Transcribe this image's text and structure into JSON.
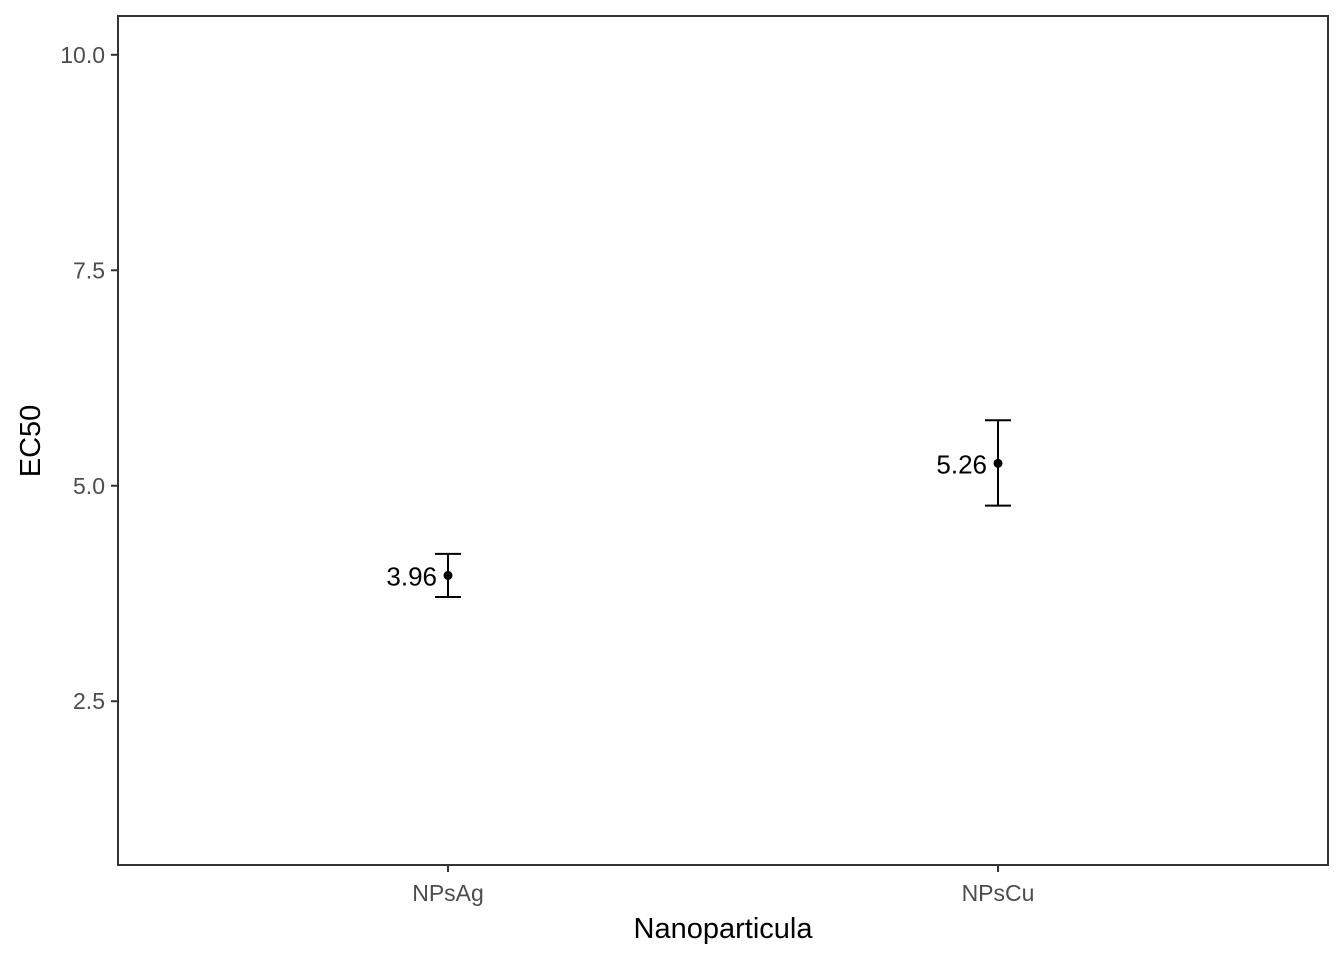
{
  "chart_data": {
    "type": "scatter",
    "title": "",
    "xlabel": "Nanoparticula",
    "ylabel": "EC50",
    "categories": [
      "NPsAg",
      "NPsCu"
    ],
    "ylim": [
      0.6,
      10.45
    ],
    "yticks": [
      "2.5",
      "5.0",
      "7.5",
      "10.0"
    ],
    "grid": false,
    "legend": "none",
    "series": [
      {
        "values": [
          3.96,
          5.26
        ],
        "lower": [
          3.71,
          4.77
        ],
        "upper": [
          4.21,
          5.76
        ],
        "labels": [
          "3.96",
          "5.26"
        ]
      }
    ],
    "colors": {
      "point": "#000000",
      "panel_border": "#333333",
      "tick_text": "#4d4d4d"
    }
  }
}
